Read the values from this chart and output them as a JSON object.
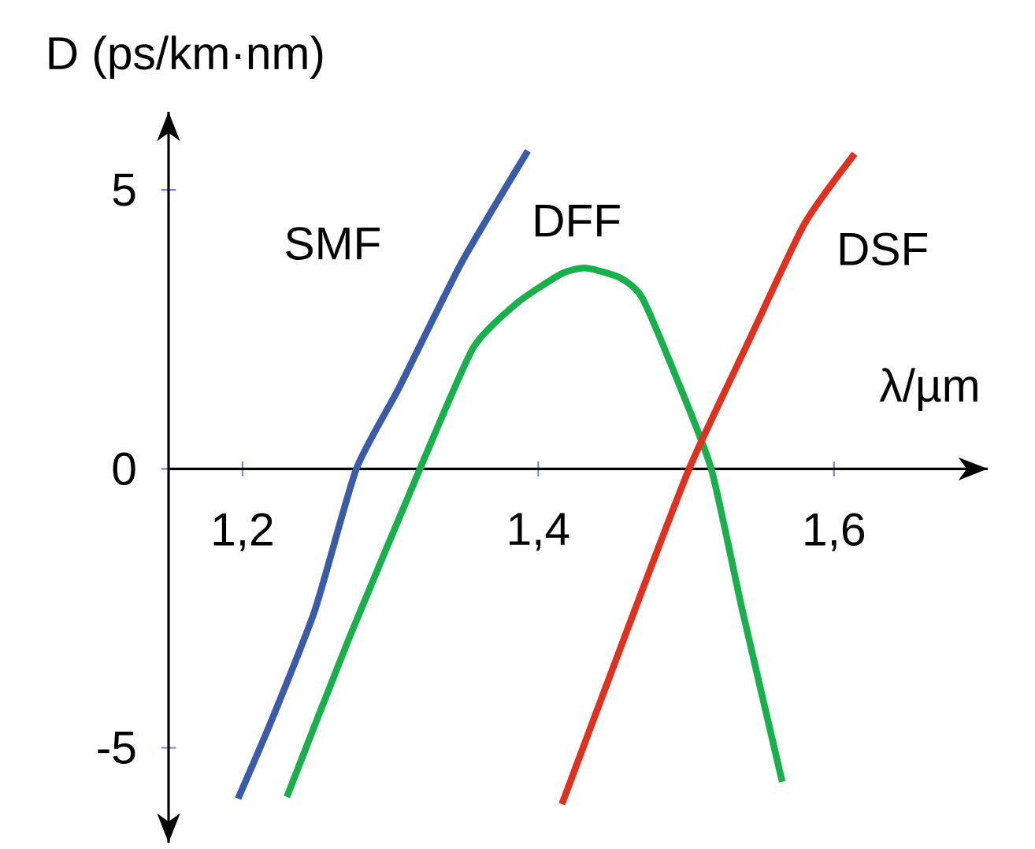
{
  "chart_data": {
    "type": "line",
    "xlabel": "λ/µm",
    "ylabel": "D (ps/km·nm)",
    "xlim": [
      1.15,
      1.704
    ],
    "ylim": [
      -6.7,
      6.4
    ],
    "xticks": [
      {
        "value": 1.2,
        "label": "1,2"
      },
      {
        "value": 1.4,
        "label": "1,4"
      },
      {
        "value": 1.6,
        "label": "1,6"
      }
    ],
    "yticks": [
      -5,
      0,
      5
    ],
    "grid": false,
    "marker": "none",
    "line_style": "solid",
    "series": [
      {
        "name": "SMF",
        "color": "#3a5ba8",
        "x": [
          1.197,
          1.219,
          1.249,
          1.277,
          1.306,
          1.348,
          1.393
        ],
        "values": [
          -5.91,
          -4.55,
          -2.53,
          0,
          1.46,
          3.69,
          5.7
        ]
      },
      {
        "name": "DFF",
        "color": "#17b04a",
        "x": [
          1.23,
          1.272,
          1.32,
          1.356,
          1.386,
          1.416,
          1.432,
          1.455,
          1.47,
          1.493,
          1.517,
          1.538,
          1.565
        ],
        "values": [
          -5.88,
          -3.04,
          0,
          2.17,
          2.98,
          3.5,
          3.6,
          3.43,
          3.08,
          1.66,
          0,
          -2.53,
          -5.61
        ]
      },
      {
        "name": "DSF",
        "color": "#e0301e",
        "x": [
          1.416,
          1.458,
          1.502,
          1.542,
          1.58,
          1.614
        ],
        "values": [
          -6.01,
          -3.04,
          0,
          2.27,
          4.39,
          5.65
        ]
      }
    ]
  }
}
